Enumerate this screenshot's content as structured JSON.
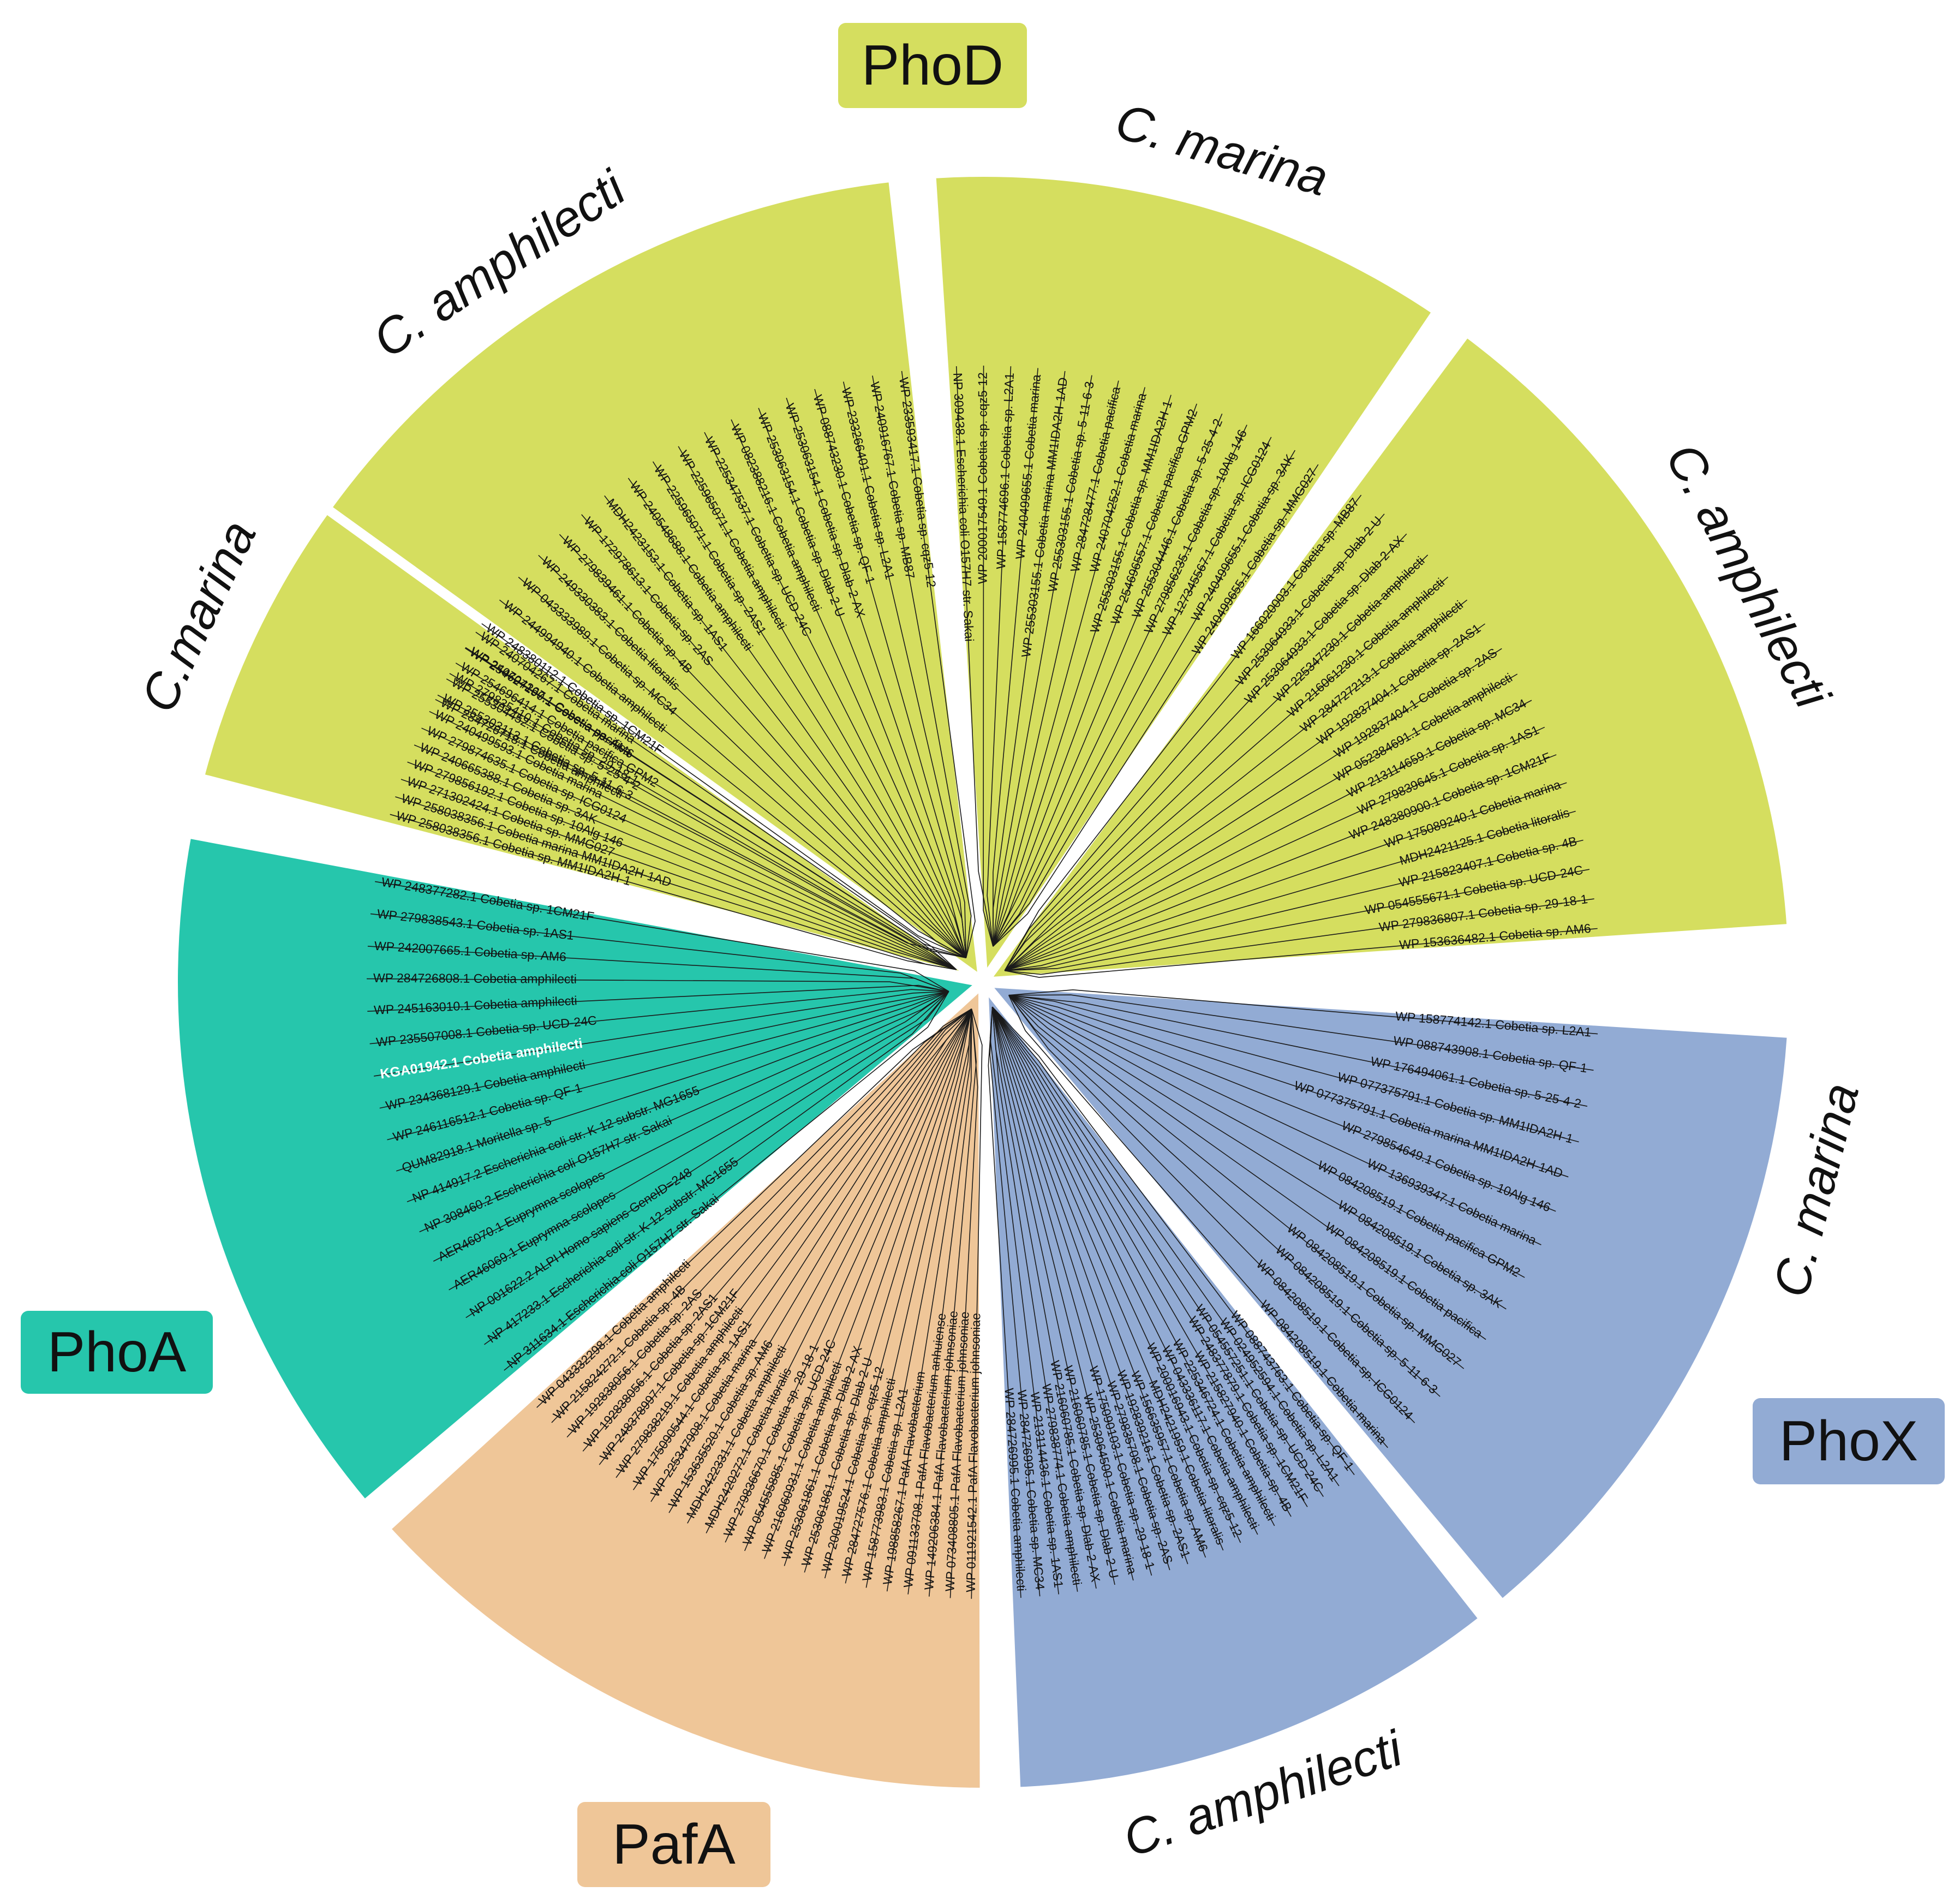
{
  "colors": {
    "PhoD": "#d5de5f",
    "PhoA": "#26c6ac",
    "PhoX": "#92abd4",
    "PafA": "#efc698",
    "branch": "#1a1a1a",
    "gap": "#ffffff"
  },
  "groups": [
    {
      "id": "PhoD",
      "label": "PhoD",
      "color": "#d5de5f"
    },
    {
      "id": "PhoA",
      "label": "PhoA",
      "color": "#26c6ac"
    },
    {
      "id": "PhoX",
      "label": "PhoX",
      "color": "#92abd4"
    },
    {
      "id": "PafA",
      "label": "PafA",
      "color": "#efc698"
    }
  ],
  "sectors": [
    {
      "group": "PhoD",
      "clade": "C. amphilecti",
      "leaves": [
        "WP 284726718.1 Cobetia amphilecti",
        "WP 279835410.1 Cobetia sp. 29-18-1",
        "WP 254627190.1 Cobetia sp. AM6",
        "WP 248380112.1 Cobetia sp. 1CM21F",
        "WP 244994940.1 Cobetia amphilecti",
        "WP 043333989.1 Cobetia sp. MC34",
        "WP 249330383.1 Cobetia litoralis",
        "WP 279839461.1 Cobetia sp. 4B",
        "WP 172978613.1 Cobetia sp. 2AS",
        "MDH2423153.1 Cobetia sp. 1AS1",
        "WP 240548688.1 Cobetia amphilecti",
        "WP 225965071.1 Cobetia sp. 2AS1",
        "WP 225965071.1 Cobetia amphilecti",
        "WP 225347537.1 Cobetia sp. UCD-24C",
        "WP 082388216.1 Cobetia amphilecti",
        "WP 253063154.1 Cobetia sp. Dlab-2-U",
        "WP 253063154.1 Cobetia sp. Dlab-2-AX",
        "WP 088743230.1 Cobetia sp. QF-1",
        "WP 233266401.1 Cobetia sp. L2A1",
        "WP 240916767.1 Cobetia sp. MB87",
        "WP 233593417.1 Cobetia sp. cqz5-12"
      ]
    },
    {
      "group": "PhoD",
      "clade": "C. marina",
      "leaves": [
        "NP 309438.1 Escherichia coli O157H7 str. Sakai",
        "WP 200017549.1 Cobetia sp. cqz5-12",
        "WP 158774696.1 Cobetia sp. L2A1",
        "WP 240499655.1 Cobetia marina",
        "WP 255303155.1 Cobetia marina MM1IDA2H-1AD",
        "WP 255303155.1 Cobetia sp. 5-11-6-3",
        "WP 284728477.1 Cobetia pacifica",
        "WP 240704252.1 Cobetia marina",
        "WP 255303155.1 Cobetia sp. MM1IDA2H-1",
        "WP 254696557.1 Cobetia pacifica GPM2",
        "WP 255304446.1 Cobetia sp. 5-25-4-2",
        "WP 279856235.1 Cobetia sp. 10Alg 146",
        "WP 127345567.1 Cobetia sp. ICG0124",
        "WP 240499655.1 Cobetia sp. 3AK",
        "WP 240499655.1 Cobetia sp. MMG027"
      ]
    },
    {
      "group": "PhoD",
      "clade": "C. amphilecti",
      "leaves": [
        "WP 166020003.1 Cobetia sp. MB87",
        "WP 253064933.1 Cobetia sp. Dlab-2-U",
        "WP 253064933.1 Cobetia sp. Dlab-2-AX",
        "WP 225347230.1 Cobetia amphilecti",
        "WP 216061230.1 Cobetia amphilecti",
        "WP 284727213.1 Cobetia amphilecti",
        "WP 192837404.1 Cobetia sp. 2AS1",
        "WP 192837404.1 Cobetia sp. 2AS",
        "WP 052384691.1 Cobetia amphilecti",
        "WP 213114659.1 Cobetia sp. MC34",
        "WP 279839645.1 Cobetia sp. 1AS1",
        "WP 248380900.1 Cobetia sp. 1CM21F",
        "WP 175089240.1 Cobetia marina",
        "MDH2421125.1 Cobetia litoralis",
        "WP 215823407.1 Cobetia sp. 4B",
        "WP 054555671.1 Cobetia sp. UCD-24C",
        "WP 279836807.1 Cobetia sp. 29-18-1",
        "WP 153636482.1 Cobetia sp. AM6"
      ]
    },
    {
      "group": "PhoX",
      "clade": "C. marina",
      "leaves": [
        "WP 158774142.1 Cobetia sp. L2A1",
        "WP 088743908.1 Cobetia sp. QF-1",
        "WP 176494061.1 Cobetia sp. 5-25-4-2",
        "WP 077375791.1 Cobetia sp. MM1IDA2H-1",
        "WP 077375791.1 Cobetia marina MM1IDA2H-1AD",
        "WP 279854649.1 Cobetia sp. 10Alg 146",
        "WP 136939347.1 Cobetia marina",
        "WP 084208519.1 Cobetia pacifica GPM2",
        "WP 084208519.1 Cobetia sp. 3AK",
        "WP 084208519.1 Cobetia pacifica",
        "WP 084208519.1 Cobetia sp. MMG027",
        "WP 084208519.1 Cobetia sp. 5-11-6-3",
        "WP 084208519.1 Cobetia sp. ICG0124",
        "WP 084208519.1 Cobetia marina"
      ]
    },
    {
      "group": "PhoX",
      "clade": "C. amphilecti",
      "leaves": [
        "WP 088743763.1 Cobetia sp. QF-1",
        "WP 024952594.1 Cobetia sp. L2A1",
        "WP 054557251.1 Cobetia sp. UCD-24C",
        "WP 248377879.1 Cobetia sp. 1CM21F",
        "WP 215827940.1 Cobetia sp. 4B",
        "WP 225346724.1 Cobetia amphilecti",
        "WP 043336117.1 Cobetia amphilecti",
        "WP 200016943.1 Cobetia sp. cqz5-12",
        "MDH2421959.1 Cobetia litoralis",
        "WP 156635957.1 Cobetia sp. AM6",
        "WP 192839216.1 Cobetia sp. 2AS1",
        "WP 279835708.1 Cobetia sp. 2AS",
        "WP 175090103.1 Cobetia sp. 29-18-1",
        "WP 253064500.1 Cobetia marina",
        "WP 216060785.1 Cobetia sp. Dlab-2-U",
        "WP 216060785.1 Cobetia sp. Dlab-2-AX",
        "WP 279838774.1 Cobetia amphilecti",
        "WP 213114436.1 Cobetia sp. 1AS1",
        "WP 284726995.1 Cobetia sp. MC34",
        "WP 284726995.1 Cobetia amphilecti"
      ]
    },
    {
      "group": "PafA",
      "clade": "",
      "leaves": [
        "WP 011921542.1 PafA Flavobacterium johnsoniae",
        "WP 073408805.1 PafA Flavobacterium johnsoniae",
        "WP 149206384.1 PafA Flavobacterium johnsoniae",
        "WP 091133708.1 PafA Flavobacterium anhuiense",
        "WP 198858267.1 PafA Flavobacterium",
        "WP 158773983.1 Cobetia sp. L2A1",
        "WP 284727576.1 Cobetia amphilecti",
        "WP 200019524.1 Cobetia sp. cqz5-12",
        "WP 253061861.1 Cobetia sp. Dlab-2-U",
        "WP 253061861.1 Cobetia sp. Dlab-2-AX",
        "WP 216060931.1 Cobetia amphilecti",
        "WP 054555885.1 Cobetia sp. UCD-24C",
        "WP 279836670.1 Cobetia sp. 29-18-1",
        "MDH2420272.1 Cobetia litoralis",
        "MDH2422331.1 Cobetia amphilecti",
        "WP 153635520.1 Cobetia sp. AM6",
        "WP 225347908.1 Cobetia marina",
        "WP 175090544.1 Cobetia sp. 1AS1",
        "WP 279838219.1 Cobetia amphilecti",
        "WP 248378997.1 Cobetia sp. 1CM21F",
        "WP 192838056.1 Cobetia sp. 2AS1",
        "WP 192838056.1 Cobetia sp. 2AS",
        "WP 215824272.1 Cobetia sp. 4B",
        "WP 043332298.1 Cobetia amphilecti"
      ]
    },
    {
      "group": "PhoA",
      "clade": "",
      "leaves": [
        "NP 311634.1 Escherichia coli O157H7 str. Sakai",
        "NP 417233.1 Escherichia coli str. K-12 substr. MG1655",
        "NP 001622.2 ALPI Homo sapiens GeneID=248",
        "AER46069.1 Euprymna scolopes",
        "AER46070.1 Euprymna scolopes",
        "NP 308460.2 Escherichia coli O157H7 str. Sakai",
        "NP 414917.2 Escherichia coli str. K-12 substr. MG1655",
        "QUM82918.1 Moritella sp. 5",
        "WP 246116512.1 Cobetia sp. QF-1",
        "WP 234368129.1 Cobetia amphilecti",
        "KGA01942.1 Cobetia amphilecti",
        "WP 235507008.1 Cobetia sp. UCD-24C",
        "WP 245163010.1 Cobetia amphilecti",
        "WP 284726808.1 Cobetia amphilecti",
        "WP 242007665.1 Cobetia sp. AM6",
        "WP 279838543.1 Cobetia sp. 1AS1",
        "WP 248377282.1 Cobetia sp. 1CM21F"
      ],
      "highlight": "KGA01942.1 Cobetia amphilecti"
    },
    {
      "group": "PhoD",
      "clade": "C.marina",
      "leaves": [
        "WP 258038356.1 Cobetia sp. MM1IDA2H-1",
        "WP 258038356.1 Cobetia marina MM1IDA2H-1AD",
        "WP 271302424.1 Cobetia sp. MMG027",
        "WP 279856192.1 Cobetia sp. 10Alg 146",
        "WP 240665388.1 Cobetia sp. 3AK",
        "WP 279874635.1 Cobetia sp. ICG0124",
        "WP 240499593.1 Cobetia marina",
        "WP 255303113.1 Cobetia sp. 5-11-6-3",
        "WP 255304452.1 Cobetia sp. 5-25-4-2",
        "WP 254696414.1 Cobetia pacifica GPM2",
        "WP 240704267.1 Cobetia pacifica",
        "WP 240704267.1 Cobetia marina"
      ]
    }
  ]
}
